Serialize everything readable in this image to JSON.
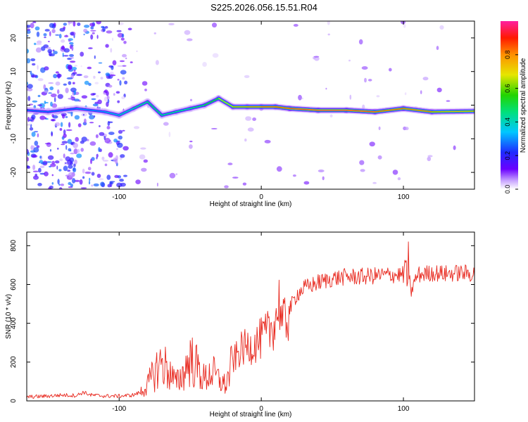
{
  "title": "S225.2026.056.15.51.R04",
  "chart_data": [
    {
      "type": "heatmap",
      "panel": "top",
      "xlabel": "Height of straight line (km)",
      "ylabel": "Frequency (Hz)",
      "xlim": [
        -165,
        150
      ],
      "ylim": [
        -25,
        25
      ],
      "xticks": [
        -100,
        0,
        100
      ],
      "yticks": [
        -20,
        -10,
        0,
        10,
        20
      ],
      "colorbar": {
        "label": "Normalized spectral amplitude",
        "range": [
          0,
          1
        ],
        "ticks": [
          0.0,
          0.2,
          0.4,
          0.6,
          0.8
        ]
      },
      "ridge": {
        "x": [
          -165,
          -150,
          -130,
          -110,
          -100,
          -90,
          -80,
          -70,
          -60,
          -50,
          -40,
          -30,
          -20,
          -10,
          0,
          10,
          20,
          40,
          60,
          80,
          100,
          120,
          150
        ],
        "y": [
          -1.5,
          -2,
          -1,
          -2,
          -3,
          -1,
          1,
          -3,
          -2,
          -1,
          0,
          2,
          -0.5,
          -0.5,
          -0.5,
          -0.5,
          -1,
          -1.5,
          -1.5,
          -2,
          -1,
          -2,
          -1.8
        ],
        "amplitude": [
          0.3,
          0.3,
          0.3,
          0.35,
          0.4,
          0.45,
          0.5,
          0.5,
          0.45,
          0.5,
          0.5,
          0.6,
          0.75,
          0.8,
          0.85,
          0.9,
          0.9,
          0.95,
          0.95,
          0.9,
          0.85,
          0.85,
          0.7
        ]
      }
    },
    {
      "type": "line",
      "panel": "bottom",
      "xlabel": "Height of straight line (km)",
      "ylabel": "SNR (10 * v/v)",
      "xlim": [
        -165,
        150
      ],
      "ylim": [
        0,
        870
      ],
      "xticks": [
        -100,
        0,
        100
      ],
      "yticks": [
        0,
        200,
        400,
        600,
        800
      ],
      "series": [
        {
          "name": "SNR",
          "color": "#e8291f",
          "x": [
            -165,
            -150,
            -140,
            -130,
            -125,
            -120,
            -110,
            -100,
            -90,
            -85,
            -80,
            -75,
            -70,
            -65,
            -60,
            -55,
            -50,
            -45,
            -40,
            -35,
            -30,
            -25,
            -20,
            -15,
            -10,
            -5,
            0,
            5,
            10,
            13,
            15,
            20,
            25,
            30,
            40,
            50,
            60,
            70,
            80,
            90,
            100,
            103,
            105,
            110,
            120,
            130,
            140,
            150
          ],
          "y": [
            20,
            25,
            30,
            28,
            45,
            30,
            25,
            25,
            30,
            45,
            80,
            150,
            200,
            150,
            90,
            140,
            220,
            170,
            110,
            150,
            110,
            80,
            200,
            260,
            280,
            290,
            320,
            350,
            420,
            520,
            380,
            470,
            550,
            580,
            610,
            630,
            640,
            640,
            645,
            650,
            650,
            760,
            560,
            650,
            660,
            655,
            660,
            655
          ]
        }
      ]
    }
  ]
}
